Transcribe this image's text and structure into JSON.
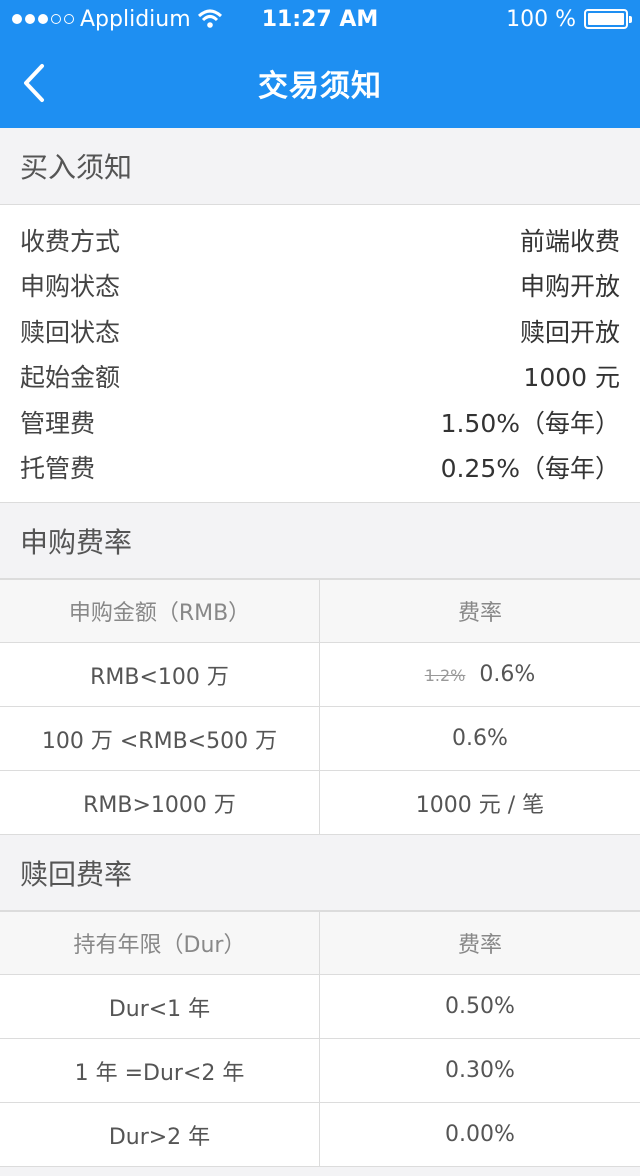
{
  "status_bar": {
    "carrier": "Applidium",
    "time": "11:27 AM",
    "battery": "100 %",
    "battery_level": 1.0
  },
  "nav": {
    "title": "交易须知"
  },
  "buy_notice": {
    "header": "买入须知",
    "rows": [
      {
        "label": "收费方式",
        "value": "前端收费"
      },
      {
        "label": "申购状态",
        "value": "申购开放"
      },
      {
        "label": "赎回状态",
        "value": "赎回开放"
      },
      {
        "label": "起始金额",
        "value": "1000 元"
      },
      {
        "label": "管理费",
        "value": "1.50%（每年）"
      },
      {
        "label": "托管费",
        "value": "0.25%（每年）"
      }
    ]
  },
  "purchase_rate": {
    "header": "申购费率",
    "columns": [
      "申购金额（RMB）",
      "费率"
    ],
    "rows": [
      {
        "range": "RMB<100 万",
        "old_rate": "1.2%",
        "rate": "0.6%"
      },
      {
        "range": "100 万 <RMB<500 万",
        "rate": "0.6%"
      },
      {
        "range": "RMB>1000 万",
        "rate": "1000 元 / 笔"
      }
    ]
  },
  "redeem_rate": {
    "header": "赎回费率",
    "columns": [
      "持有年限（Dur）",
      "费率"
    ],
    "rows": [
      {
        "range": "Dur<1 年",
        "rate": "0.50%"
      },
      {
        "range": "1 年 =Dur<2 年",
        "rate": "0.30%"
      },
      {
        "range": "Dur>2 年",
        "rate": "0.00%"
      }
    ]
  }
}
